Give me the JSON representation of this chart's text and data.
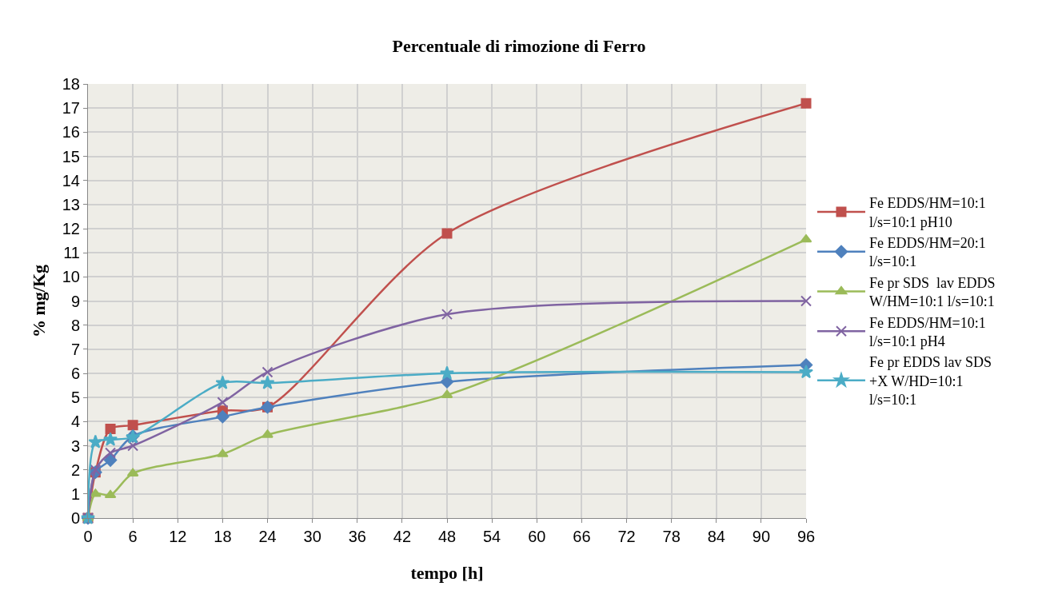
{
  "chart_data": {
    "type": "line",
    "title": "Percentuale di rimozione di Ferro",
    "xlabel": "tempo [h]",
    "ylabel": "% mg/Kg",
    "x": [
      0,
      1,
      3,
      6,
      18,
      24,
      48,
      96
    ],
    "xlim": [
      0,
      96
    ],
    "xticks": [
      0,
      6,
      12,
      18,
      24,
      30,
      36,
      42,
      48,
      54,
      60,
      66,
      72,
      78,
      84,
      90,
      96
    ],
    "ylim": [
      0,
      18
    ],
    "yticks": [
      0,
      1,
      2,
      3,
      4,
      5,
      6,
      7,
      8,
      9,
      10,
      11,
      12,
      13,
      14,
      15,
      16,
      17,
      18
    ],
    "grid": true,
    "legend": "right",
    "line_style": "solid",
    "series": [
      {
        "name": "Fe EDDS/HM=10:1 l/s=10:1 pH10",
        "color": "#c0504d",
        "marker": "square",
        "values": [
          0,
          1.9,
          3.7,
          3.85,
          4.45,
          4.6,
          11.8,
          17.2
        ]
      },
      {
        "name": "Fe EDDS/HM=20:1 l/s=10:1",
        "color": "#4f81bd",
        "marker": "diamond",
        "values": [
          0,
          1.9,
          2.4,
          3.4,
          4.2,
          4.6,
          5.65,
          6.35
        ]
      },
      {
        "name": "Fe pr SDS  lav EDDS W/HM=10:1 l/s=10:1",
        "color": "#9bbb59",
        "marker": "triangle",
        "values": [
          0,
          1.0,
          0.95,
          1.85,
          2.65,
          3.45,
          5.1,
          11.55
        ]
      },
      {
        "name": "Fe EDDS/HM=10:1 l/s=10:1 pH4",
        "color": "#8064a2",
        "marker": "cross",
        "values": [
          0,
          2.0,
          2.7,
          3.0,
          4.8,
          6.05,
          8.45,
          9.0
        ]
      },
      {
        "name": "Fe pr EDDS lav SDS +X W/HD=10:1 l/s=10:1",
        "color": "#4bacc6",
        "marker": "star",
        "values": [
          0,
          3.15,
          3.25,
          3.35,
          5.6,
          5.6,
          6.0,
          6.05
        ]
      }
    ]
  }
}
